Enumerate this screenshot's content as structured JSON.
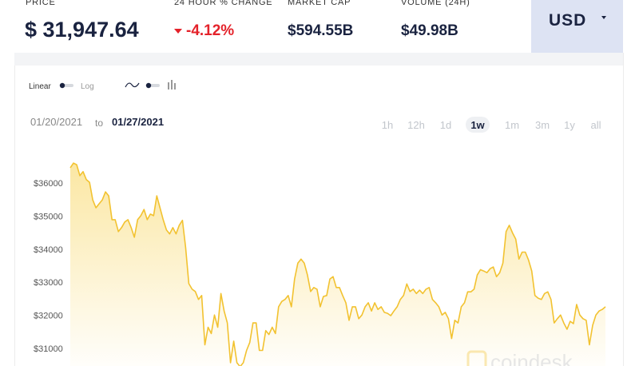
{
  "header": {
    "stats": [
      {
        "label": "PRICE",
        "value": "$ 31,947.64"
      },
      {
        "label": "24 HOUR % CHANGE",
        "value": "-4.12%"
      },
      {
        "label": "MARKET CAP",
        "value": "$594.55B"
      },
      {
        "label": "VOLUME (24H)",
        "value": "$49.98B"
      }
    ],
    "currency": "USD"
  },
  "controls": {
    "scale_options": [
      "Linear",
      "Log"
    ],
    "date_from": "01/20/2021",
    "date_separator": "to",
    "date_to": "01/27/2021",
    "ranges": [
      "1h",
      "12h",
      "1d",
      "1w",
      "1m",
      "3m",
      "1y",
      "all"
    ],
    "selected_range": "1w"
  },
  "watermark": "coindesk",
  "chart_data": {
    "type": "line",
    "color": "#f2c230",
    "grid": false,
    "ylim": [
      30400,
      37000
    ],
    "yticks": [
      {
        "value": 31000,
        "label": "$31000"
      },
      {
        "value": 32000,
        "label": "$32000"
      },
      {
        "value": 33000,
        "label": "$33000"
      },
      {
        "value": 34000,
        "label": "$34000"
      },
      {
        "value": 35000,
        "label": "$35000"
      },
      {
        "value": 36000,
        "label": "$36000"
      }
    ],
    "values": [
      36460,
      36600,
      36550,
      36220,
      36340,
      36100,
      36020,
      35490,
      35250,
      35370,
      35490,
      35730,
      35610,
      34890,
      34890,
      34530,
      34650,
      34820,
      34890,
      34650,
      34360,
      34890,
      35010,
      35200,
      34890,
      35060,
      35010,
      35610,
      35250,
      34890,
      34580,
      34460,
      34650,
      34460,
      34720,
      34870,
      34050,
      32960,
      32790,
      32720,
      32480,
      32600,
      31110,
      31640,
      31450,
      32010,
      31640,
      32660,
      32130,
      31770,
      30570,
      31220,
      30570,
      30450,
      30570,
      30940,
      31180,
      31770,
      31770,
      30940,
      30940,
      31540,
      31420,
      31640,
      31450,
      32260,
      32420,
      32480,
      32600,
      32260,
      33100,
      33580,
      33700,
      33580,
      33220,
      32720,
      32840,
      32790,
      32260,
      32570,
      32600,
      33100,
      33170,
      32840,
      32840,
      32600,
      32380,
      31850,
      32260,
      32260,
      31900,
      32010,
      32260,
      32380,
      32130,
      32380,
      32180,
      32260,
      32090,
      32060,
      31990,
      32130,
      32260,
      32480,
      32600,
      32950,
      32720,
      32790,
      32660,
      32760,
      32660,
      32790,
      32840,
      32480,
      32380,
      32260,
      32010,
      32090,
      31900,
      31300,
      31850,
      31770,
      32260,
      32380,
      32710,
      32710,
      32790,
      33220,
      33380,
      33340,
      33290,
      33410,
      33460,
      33170,
      33290,
      33580,
      34530,
      34720,
      34490,
      34300,
      33700,
      33910,
      33910,
      33670,
      33340,
      32600,
      32520,
      32480,
      32660,
      32710,
      32480,
      31770,
      31900,
      32010,
      31770,
      31580,
      31820,
      31750,
      32330,
      32010,
      31900,
      31850,
      31110,
      31700,
      32010,
      32130,
      32180,
      32260
    ]
  }
}
